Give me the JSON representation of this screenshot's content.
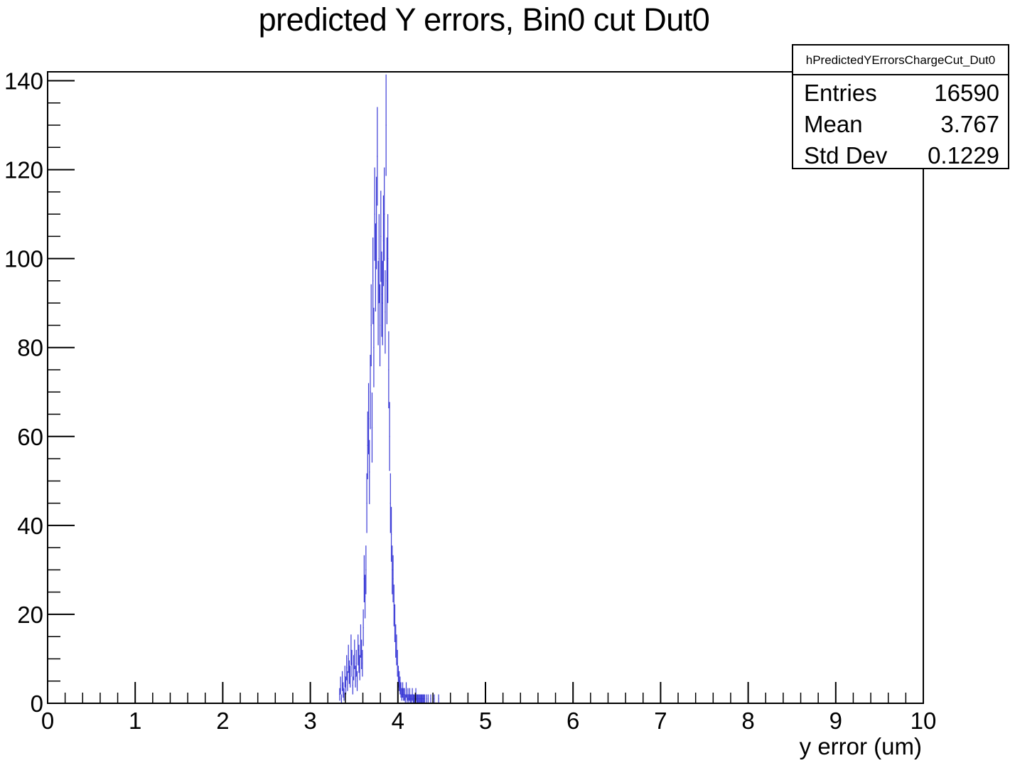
{
  "chart_data": {
    "type": "bar",
    "title": "predicted Y errors, Bin0 cut Dut0",
    "xlabel": "y error (um)",
    "ylabel": "",
    "xlim": [
      0,
      10
    ],
    "ylim": [
      0,
      142
    ],
    "x_ticks": [
      "0",
      "1",
      "2",
      "3",
      "4",
      "5",
      "6",
      "7",
      "8",
      "9",
      "10"
    ],
    "y_ticks": [
      "0",
      "20",
      "40",
      "60",
      "80",
      "100",
      "120",
      "140"
    ],
    "bin_width": 0.01,
    "line_color": "#3a3ad6",
    "bins_x": [
      3.33,
      3.34,
      3.35,
      3.36,
      3.37,
      3.38,
      3.39,
      3.4,
      3.41,
      3.42,
      3.43,
      3.44,
      3.45,
      3.46,
      3.47,
      3.48,
      3.49,
      3.5,
      3.51,
      3.52,
      3.53,
      3.54,
      3.55,
      3.56,
      3.57,
      3.58,
      3.59,
      3.6,
      3.61,
      3.62,
      3.63,
      3.64,
      3.65,
      3.66,
      3.67,
      3.68,
      3.69,
      3.7,
      3.71,
      3.72,
      3.73,
      3.74,
      3.75,
      3.76,
      3.77,
      3.78,
      3.79,
      3.8,
      3.81,
      3.82,
      3.83,
      3.84,
      3.85,
      3.86,
      3.87,
      3.88,
      3.89,
      3.9,
      3.91,
      3.92,
      3.93,
      3.94,
      3.95,
      3.96,
      3.97,
      3.98,
      3.99,
      4.0,
      4.01,
      4.02,
      4.03,
      4.04,
      4.05,
      4.06,
      4.07,
      4.08,
      4.09,
      4.1,
      4.11,
      4.12,
      4.13,
      4.14,
      4.15,
      4.16,
      4.17,
      4.18,
      4.19,
      4.2,
      4.21,
      4.22,
      4.23,
      4.24,
      4.25,
      4.26,
      4.27,
      4.28,
      4.29,
      4.3,
      4.32,
      4.34,
      4.37,
      4.41,
      4.46
    ],
    "bins_y": [
      2,
      4,
      1,
      5,
      3,
      2,
      6,
      4,
      8,
      5,
      10,
      7,
      6,
      12,
      9,
      4,
      8,
      11,
      6,
      9,
      5,
      12,
      10,
      8,
      14,
      11,
      9,
      17,
      28,
      24,
      30,
      45,
      58,
      64,
      52,
      70,
      85,
      62,
      95,
      80,
      110,
      98,
      108,
      123,
      90,
      100,
      85,
      105,
      92,
      90,
      104,
      110,
      88,
      130,
      95,
      100,
      75,
      60,
      45,
      38,
      30,
      28,
      22,
      18,
      14,
      12,
      9,
      6,
      5,
      4,
      3,
      2,
      3,
      2,
      2,
      1,
      3,
      1,
      2,
      1,
      2,
      1,
      1,
      2,
      1,
      1,
      1,
      2,
      1,
      1,
      1,
      1,
      1,
      1,
      1,
      1,
      1,
      1,
      1,
      1,
      1,
      1,
      1
    ],
    "stats": {
      "name": "hPredictedYErrorsChargeCut_Dut0",
      "rows": [
        {
          "label": "Entries",
          "value": "16590"
        },
        {
          "label": "Mean",
          "value": "3.767"
        },
        {
          "label": "Std Dev",
          "value": "0.1229"
        }
      ]
    }
  }
}
